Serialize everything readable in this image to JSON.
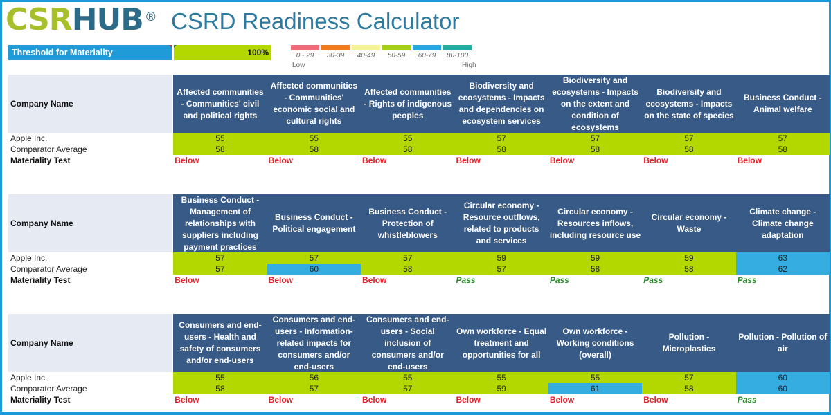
{
  "header": {
    "logo_csr": "CSR",
    "logo_hub": "HUB",
    "logo_reg": "®",
    "title": "CSRD Readiness Calculator"
  },
  "threshold": {
    "label": "Threshold for Materiality",
    "value": "100%"
  },
  "legend": {
    "items": [
      {
        "range": "0 - 29",
        "color": "#ee6d7b"
      },
      {
        "range": "30-39",
        "color": "#f07d22"
      },
      {
        "range": "40-49",
        "color": "#f5f39a"
      },
      {
        "range": "50-59",
        "color": "#a6cf1a"
      },
      {
        "range": "60-79",
        "color": "#2aa6e0"
      },
      {
        "range": "80-100",
        "color": "#21ada0"
      }
    ],
    "low": "Low",
    "high": "High"
  },
  "colors": {
    "band_50_59": "#b3d800",
    "band_60_79": "#36ade0",
    "header_bg": "#385a87",
    "below": "#e8202a",
    "pass": "#2a8a2a",
    "frame": "#1a9ad6"
  },
  "labels": {
    "company_name": "Company Name",
    "company": "Apple Inc.",
    "comparator": "Comparator Average",
    "test": "Materiality Test"
  },
  "sections": [
    {
      "columns": [
        {
          "title": "Affected communities - Communities' civil and political rights",
          "company": "55",
          "comparator": "58",
          "company_band": "green",
          "comparator_band": "green",
          "test": "Below"
        },
        {
          "title": "Affected communities - Communities' economic social and cultural rights",
          "company": "55",
          "comparator": "58",
          "company_band": "green",
          "comparator_band": "green",
          "test": "Below"
        },
        {
          "title": "Affected communities - Rights of indigenous peoples",
          "company": "55",
          "comparator": "58",
          "company_band": "green",
          "comparator_band": "green",
          "test": "Below"
        },
        {
          "title": "Biodiversity and ecosystems - Impacts and dependencies on ecosystem services",
          "company": "57",
          "comparator": "58",
          "company_band": "green",
          "comparator_band": "green",
          "test": "Below"
        },
        {
          "title": "Biodiversity and ecosystems - Impacts on the extent and condition of ecosystems",
          "company": "57",
          "comparator": "58",
          "company_band": "green",
          "comparator_band": "green",
          "test": "Below"
        },
        {
          "title": "Biodiversity and ecosystems - Impacts on the state of species",
          "company": "57",
          "comparator": "58",
          "company_band": "green",
          "comparator_band": "green",
          "test": "Below"
        },
        {
          "title": "Business Conduct - Animal welfare",
          "company": "57",
          "comparator": "58",
          "company_band": "green",
          "comparator_band": "green",
          "test": "Below"
        }
      ]
    },
    {
      "columns": [
        {
          "title": "Business Conduct - Management of relationships with suppliers including payment practices",
          "company": "57",
          "comparator": "57",
          "company_band": "green",
          "comparator_band": "green",
          "test": "Below"
        },
        {
          "title": "Business Conduct - Political engagement",
          "company": "57",
          "comparator": "60",
          "company_band": "green",
          "comparator_band": "blue",
          "test": "Below"
        },
        {
          "title": "Business Conduct - Protection of whistleblowers",
          "company": "57",
          "comparator": "58",
          "company_band": "green",
          "comparator_band": "green",
          "test": "Below"
        },
        {
          "title": "Circular economy - Resource outflows, related to products and services",
          "company": "59",
          "comparator": "57",
          "company_band": "green",
          "comparator_band": "green",
          "test": "Pass"
        },
        {
          "title": "Circular economy - Resources inflows, including resource use",
          "company": "59",
          "comparator": "58",
          "company_band": "green",
          "comparator_band": "green",
          "test": "Pass"
        },
        {
          "title": "Circular economy - Waste",
          "company": "59",
          "comparator": "58",
          "company_band": "green",
          "comparator_band": "green",
          "test": "Pass"
        },
        {
          "title": "Climate change - Climate change adaptation",
          "company": "63",
          "comparator": "62",
          "company_band": "blue",
          "comparator_band": "blue",
          "test": "Pass"
        }
      ]
    },
    {
      "columns": [
        {
          "title": "Consumers and end-users - Health and safety of consumers and/or end-users",
          "company": "55",
          "comparator": "58",
          "company_band": "green",
          "comparator_band": "green",
          "test": "Below"
        },
        {
          "title": "Consumers and end-users - Information-related impacts for consumers and/or end-users",
          "company": "56",
          "comparator": "57",
          "company_band": "green",
          "comparator_band": "green",
          "test": "Below"
        },
        {
          "title": "Consumers and end-users - Social inclusion of consumers and/or end-users",
          "company": "55",
          "comparator": "57",
          "company_band": "green",
          "comparator_band": "green",
          "test": "Below"
        },
        {
          "title": "Own workforce - Equal treatment and opportunities for all",
          "company": "55",
          "comparator": "59",
          "company_band": "green",
          "comparator_band": "green",
          "test": "Below"
        },
        {
          "title": "Own workforce - Working conditions (overall)",
          "company": "55",
          "comparator": "61",
          "company_band": "green",
          "comparator_band": "blue",
          "test": "Below"
        },
        {
          "title": "Pollution - Microplastics",
          "company": "57",
          "comparator": "58",
          "company_band": "green",
          "comparator_band": "green",
          "test": "Below"
        },
        {
          "title": "Pollution - Pollution of air",
          "company": "60",
          "comparator": "60",
          "company_band": "blue",
          "comparator_band": "blue",
          "test": "Pass"
        }
      ]
    }
  ]
}
